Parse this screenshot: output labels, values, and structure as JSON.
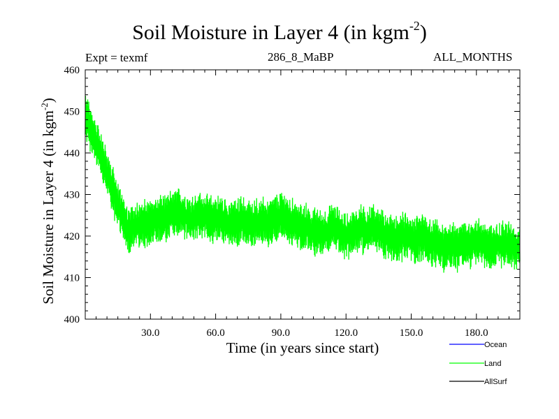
{
  "chart_data": {
    "type": "line",
    "title": "Soil Moisture in Layer 4 (in kgm",
    "title_exponent": "-2",
    "title_close": ")",
    "expt_label": "Expt",
    "expt_eq": "=",
    "expt_name": "texmf",
    "run_id": "286_8_MaBP",
    "months": "ALL_MONTHS",
    "xlabel": "Time (in years since start)",
    "ylabel": "Soil Moisture in Layer 4 (in kgm",
    "ylabel_exponent": "-2",
    "ylabel_close": ")",
    "xlim": [
      0,
      200
    ],
    "ylim": [
      400,
      460
    ],
    "xticks": [
      30,
      60,
      90,
      120,
      150,
      180
    ],
    "xtick_labels": [
      "30.0",
      "60.0",
      "90.0",
      "120.0",
      "150.0",
      "180.0"
    ],
    "yticks": [
      400,
      410,
      420,
      430,
      440,
      450,
      460
    ],
    "ytick_labels": [
      "400",
      "410",
      "420",
      "430",
      "440",
      "450",
      "460"
    ],
    "legend": [
      {
        "name": "Ocean",
        "color": "#0000ff"
      },
      {
        "name": "Land",
        "color": "#00ff00"
      },
      {
        "name": "AllSurf",
        "color": "#000000"
      }
    ],
    "series": [
      {
        "name": "Land",
        "color": "#00ff00",
        "x": [
          0,
          2,
          4,
          6,
          8,
          10,
          12,
          14,
          16,
          18,
          20,
          22,
          24,
          26,
          28,
          30,
          33,
          36,
          39,
          42,
          45,
          48,
          51,
          54,
          57,
          60,
          63,
          66,
          69,
          72,
          75,
          78,
          81,
          84,
          87,
          90,
          93,
          96,
          99,
          102,
          105,
          108,
          111,
          114,
          117,
          120,
          123,
          126,
          129,
          132,
          135,
          138,
          141,
          144,
          147,
          150,
          153,
          156,
          159,
          162,
          165,
          168,
          171,
          174,
          177,
          180,
          183,
          186,
          189,
          192,
          195,
          198,
          200
        ],
        "values": [
          449,
          446,
          444,
          441,
          438,
          435,
          432,
          429,
          426,
          424,
          421,
          422,
          423,
          423,
          423,
          423,
          424,
          424,
          425,
          426,
          425,
          424,
          425,
          425,
          424,
          424,
          424,
          423,
          423,
          424,
          423,
          423,
          424,
          423,
          424,
          425,
          424,
          423,
          422,
          422,
          421,
          421,
          421,
          422,
          421,
          420,
          421,
          422,
          421,
          422,
          421,
          420,
          420,
          419,
          420,
          419,
          419,
          420,
          418,
          418,
          417,
          418,
          417,
          418,
          418,
          419,
          418,
          417,
          418,
          418,
          418,
          417,
          418
        ]
      }
    ]
  }
}
